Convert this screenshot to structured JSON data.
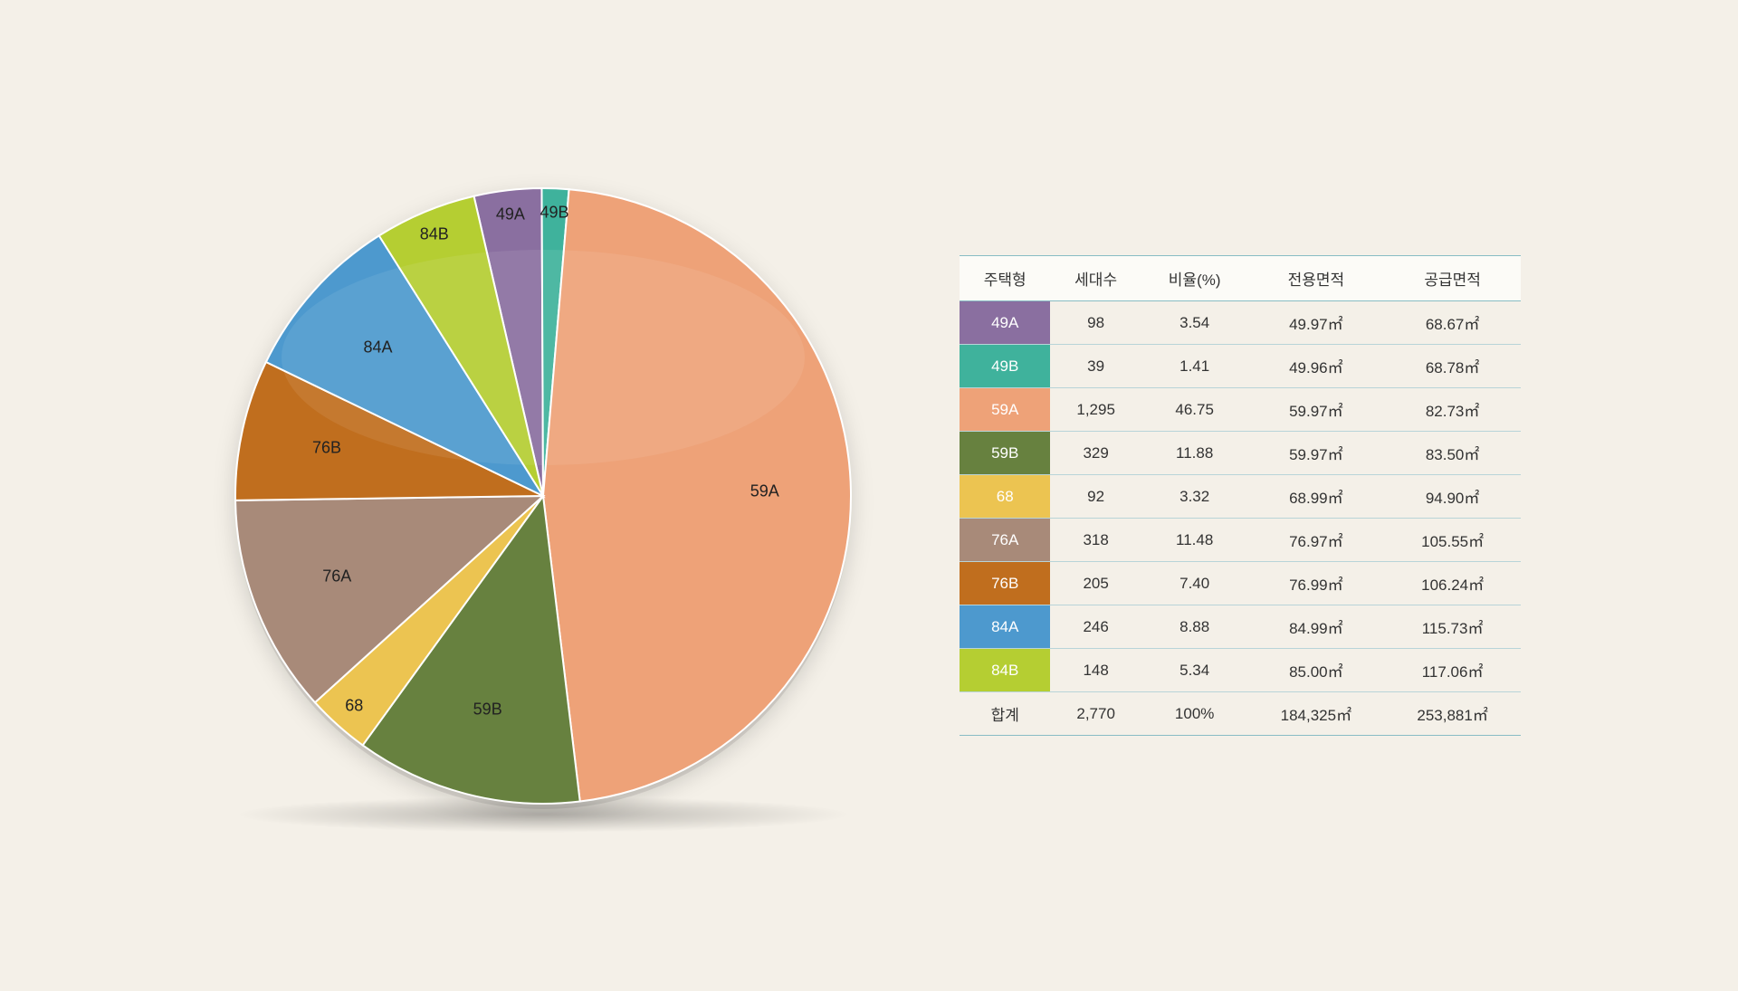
{
  "background_color": "#f4f0e8",
  "pie_chart": {
    "type": "pie",
    "stroke_color": "#ffffff",
    "stroke_width": 2,
    "label_fontsize": 18,
    "label_color": "#222222",
    "slices": [
      {
        "label": "49A",
        "value": 3.54,
        "color": "#8a6fa0"
      },
      {
        "label": "49B",
        "value": 1.41,
        "color": "#3fb29c"
      },
      {
        "label": "59A",
        "value": 46.75,
        "color": "#eea278"
      },
      {
        "label": "59B",
        "value": 11.88,
        "color": "#67813f"
      },
      {
        "label": "68",
        "value": 3.32,
        "color": "#ecc451"
      },
      {
        "label": "76A",
        "value": 11.48,
        "color": "#a88a79"
      },
      {
        "label": "76B",
        "value": 7.4,
        "color": "#c06e1e"
      },
      {
        "label": "84A",
        "value": 8.88,
        "color": "#4d99ce"
      },
      {
        "label": "84B",
        "value": 5.34,
        "color": "#b5ce32"
      }
    ],
    "start_angle_deg": -103,
    "slice_order": [
      "49A",
      "49B",
      "59A",
      "59B",
      "68",
      "76A",
      "76B",
      "84A",
      "84B"
    ],
    "label_radius_factor": 0.72,
    "label_radius_small_factor": 0.92
  },
  "table": {
    "border_color": "#88bcc4",
    "row_border_color": "#b8d4d8",
    "header_bg": "#fcfbf7",
    "fontsize": 17,
    "columns": [
      "주택형",
      "세대수",
      "비율(%)",
      "전용면적",
      "공급면적"
    ],
    "rows": [
      {
        "type": "49A",
        "color": "#8a6fa0",
        "households": "98",
        "ratio": "3.54",
        "exclusive": "49.97㎡",
        "supply": "68.67㎡"
      },
      {
        "type": "49B",
        "color": "#3fb29c",
        "households": "39",
        "ratio": "1.41",
        "exclusive": "49.96㎡",
        "supply": "68.78㎡"
      },
      {
        "type": "59A",
        "color": "#eea278",
        "households": "1,295",
        "ratio": "46.75",
        "exclusive": "59.97㎡",
        "supply": "82.73㎡"
      },
      {
        "type": "59B",
        "color": "#67813f",
        "households": "329",
        "ratio": "11.88",
        "exclusive": "59.97㎡",
        "supply": "83.50㎡"
      },
      {
        "type": "68",
        "color": "#ecc451",
        "households": "92",
        "ratio": "3.32",
        "exclusive": "68.99㎡",
        "supply": "94.90㎡"
      },
      {
        "type": "76A",
        "color": "#a88a79",
        "households": "318",
        "ratio": "11.48",
        "exclusive": "76.97㎡",
        "supply": "105.55㎡"
      },
      {
        "type": "76B",
        "color": "#c06e1e",
        "households": "205",
        "ratio": "7.40",
        "exclusive": "76.99㎡",
        "supply": "106.24㎡"
      },
      {
        "type": "84A",
        "color": "#4d99ce",
        "households": "246",
        "ratio": "8.88",
        "exclusive": "84.99㎡",
        "supply": "115.73㎡"
      },
      {
        "type": "84B",
        "color": "#b5ce32",
        "households": "148",
        "ratio": "5.34",
        "exclusive": "85.00㎡",
        "supply": "117.06㎡"
      }
    ],
    "total": {
      "label": "합계",
      "households": "2,770",
      "ratio": "100%",
      "exclusive": "184,325㎡",
      "supply": "253,881㎡"
    }
  }
}
